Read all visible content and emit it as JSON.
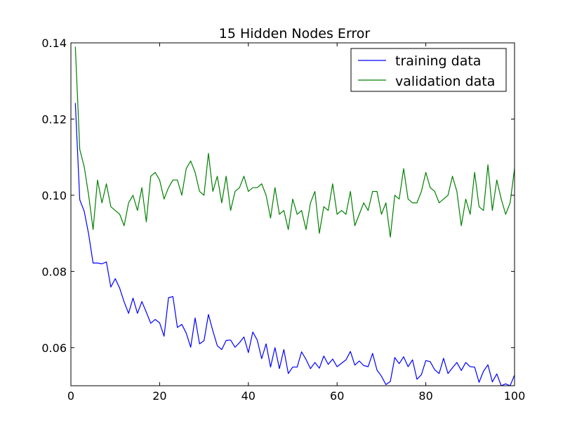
{
  "chart_data": {
    "type": "line",
    "title": "15 Hidden Nodes Error",
    "xlabel": "",
    "ylabel": "",
    "xlim": [
      0,
      100
    ],
    "ylim": [
      0.05,
      0.14
    ],
    "xticks": [
      0,
      20,
      40,
      60,
      80,
      100
    ],
    "yticks": [
      0.06,
      0.08,
      0.1,
      0.12,
      0.14
    ],
    "xtick_labels": [
      "0",
      "20",
      "40",
      "60",
      "80",
      "100"
    ],
    "ytick_labels": [
      "0.06",
      "0.08",
      "0.10",
      "0.12",
      "0.14"
    ],
    "grid": false,
    "legend_position": "top-right",
    "x": [
      1,
      2,
      3,
      4,
      5,
      6,
      7,
      8,
      9,
      10,
      11,
      12,
      13,
      14,
      15,
      16,
      17,
      18,
      19,
      20,
      21,
      22,
      23,
      24,
      25,
      26,
      27,
      28,
      29,
      30,
      31,
      32,
      33,
      34,
      35,
      36,
      37,
      38,
      39,
      40,
      41,
      42,
      43,
      44,
      45,
      46,
      47,
      48,
      49,
      50,
      51,
      52,
      53,
      54,
      55,
      56,
      57,
      58,
      59,
      60,
      61,
      62,
      63,
      64,
      65,
      66,
      67,
      68,
      69,
      70,
      71,
      72,
      73,
      74,
      75,
      76,
      77,
      78,
      79,
      80,
      81,
      82,
      83,
      84,
      85,
      86,
      87,
      88,
      89,
      90,
      91,
      92,
      93,
      94,
      95,
      96,
      97,
      98,
      99,
      100
    ],
    "series": [
      {
        "name": "training data",
        "color": "#0000ff",
        "values": [
          0.1242,
          0.0988,
          0.0958,
          0.0898,
          0.0822,
          0.0822,
          0.082,
          0.0825,
          0.0759,
          0.0781,
          0.0756,
          0.072,
          0.069,
          0.073,
          0.069,
          0.0721,
          0.0693,
          0.0664,
          0.0674,
          0.0665,
          0.063,
          0.0731,
          0.0734,
          0.0653,
          0.0661,
          0.0638,
          0.0601,
          0.0678,
          0.061,
          0.0618,
          0.0687,
          0.0644,
          0.0605,
          0.0595,
          0.0619,
          0.062,
          0.0601,
          0.0613,
          0.0628,
          0.0587,
          0.0641,
          0.062,
          0.0571,
          0.061,
          0.0549,
          0.06,
          0.0545,
          0.0595,
          0.0532,
          0.0549,
          0.0549,
          0.0589,
          0.0569,
          0.0545,
          0.0561,
          0.0546,
          0.0578,
          0.0556,
          0.057,
          0.055,
          0.0559,
          0.0568,
          0.059,
          0.0554,
          0.0565,
          0.0553,
          0.055,
          0.0585,
          0.0541,
          0.0525,
          0.0503,
          0.0511,
          0.0574,
          0.0558,
          0.0576,
          0.055,
          0.0568,
          0.0517,
          0.0529,
          0.0566,
          0.0563,
          0.0542,
          0.0532,
          0.0572,
          0.0532,
          0.0547,
          0.0561,
          0.054,
          0.0561,
          0.055,
          0.0549,
          0.0509,
          0.0538,
          0.0555,
          0.051,
          0.0531,
          0.05,
          0.0505,
          0.05,
          0.0528
        ]
      },
      {
        "name": "validation data",
        "color": "#008000",
        "values": [
          0.139,
          0.112,
          0.1075,
          0.1,
          0.091,
          0.104,
          0.098,
          0.103,
          0.097,
          0.096,
          0.095,
          0.092,
          0.098,
          0.1,
          0.096,
          0.102,
          0.093,
          0.105,
          0.106,
          0.104,
          0.099,
          0.102,
          0.104,
          0.104,
          0.1,
          0.107,
          0.109,
          0.106,
          0.101,
          0.1,
          0.111,
          0.101,
          0.105,
          0.098,
          0.105,
          0.096,
          0.101,
          0.102,
          0.105,
          0.101,
          0.102,
          0.102,
          0.103,
          0.1,
          0.094,
          0.102,
          0.095,
          0.096,
          0.091,
          0.099,
          0.095,
          0.096,
          0.091,
          0.098,
          0.101,
          0.09,
          0.097,
          0.096,
          0.103,
          0.095,
          0.096,
          0.095,
          0.101,
          0.092,
          0.095,
          0.098,
          0.096,
          0.101,
          0.101,
          0.095,
          0.098,
          0.089,
          0.1,
          0.099,
          0.107,
          0.099,
          0.098,
          0.098,
          0.101,
          0.106,
          0.102,
          0.101,
          0.098,
          0.099,
          0.1,
          0.105,
          0.101,
          0.092,
          0.099,
          0.095,
          0.106,
          0.097,
          0.096,
          0.108,
          0.096,
          0.104,
          0.099,
          0.095,
          0.098,
          0.107
        ]
      }
    ]
  }
}
